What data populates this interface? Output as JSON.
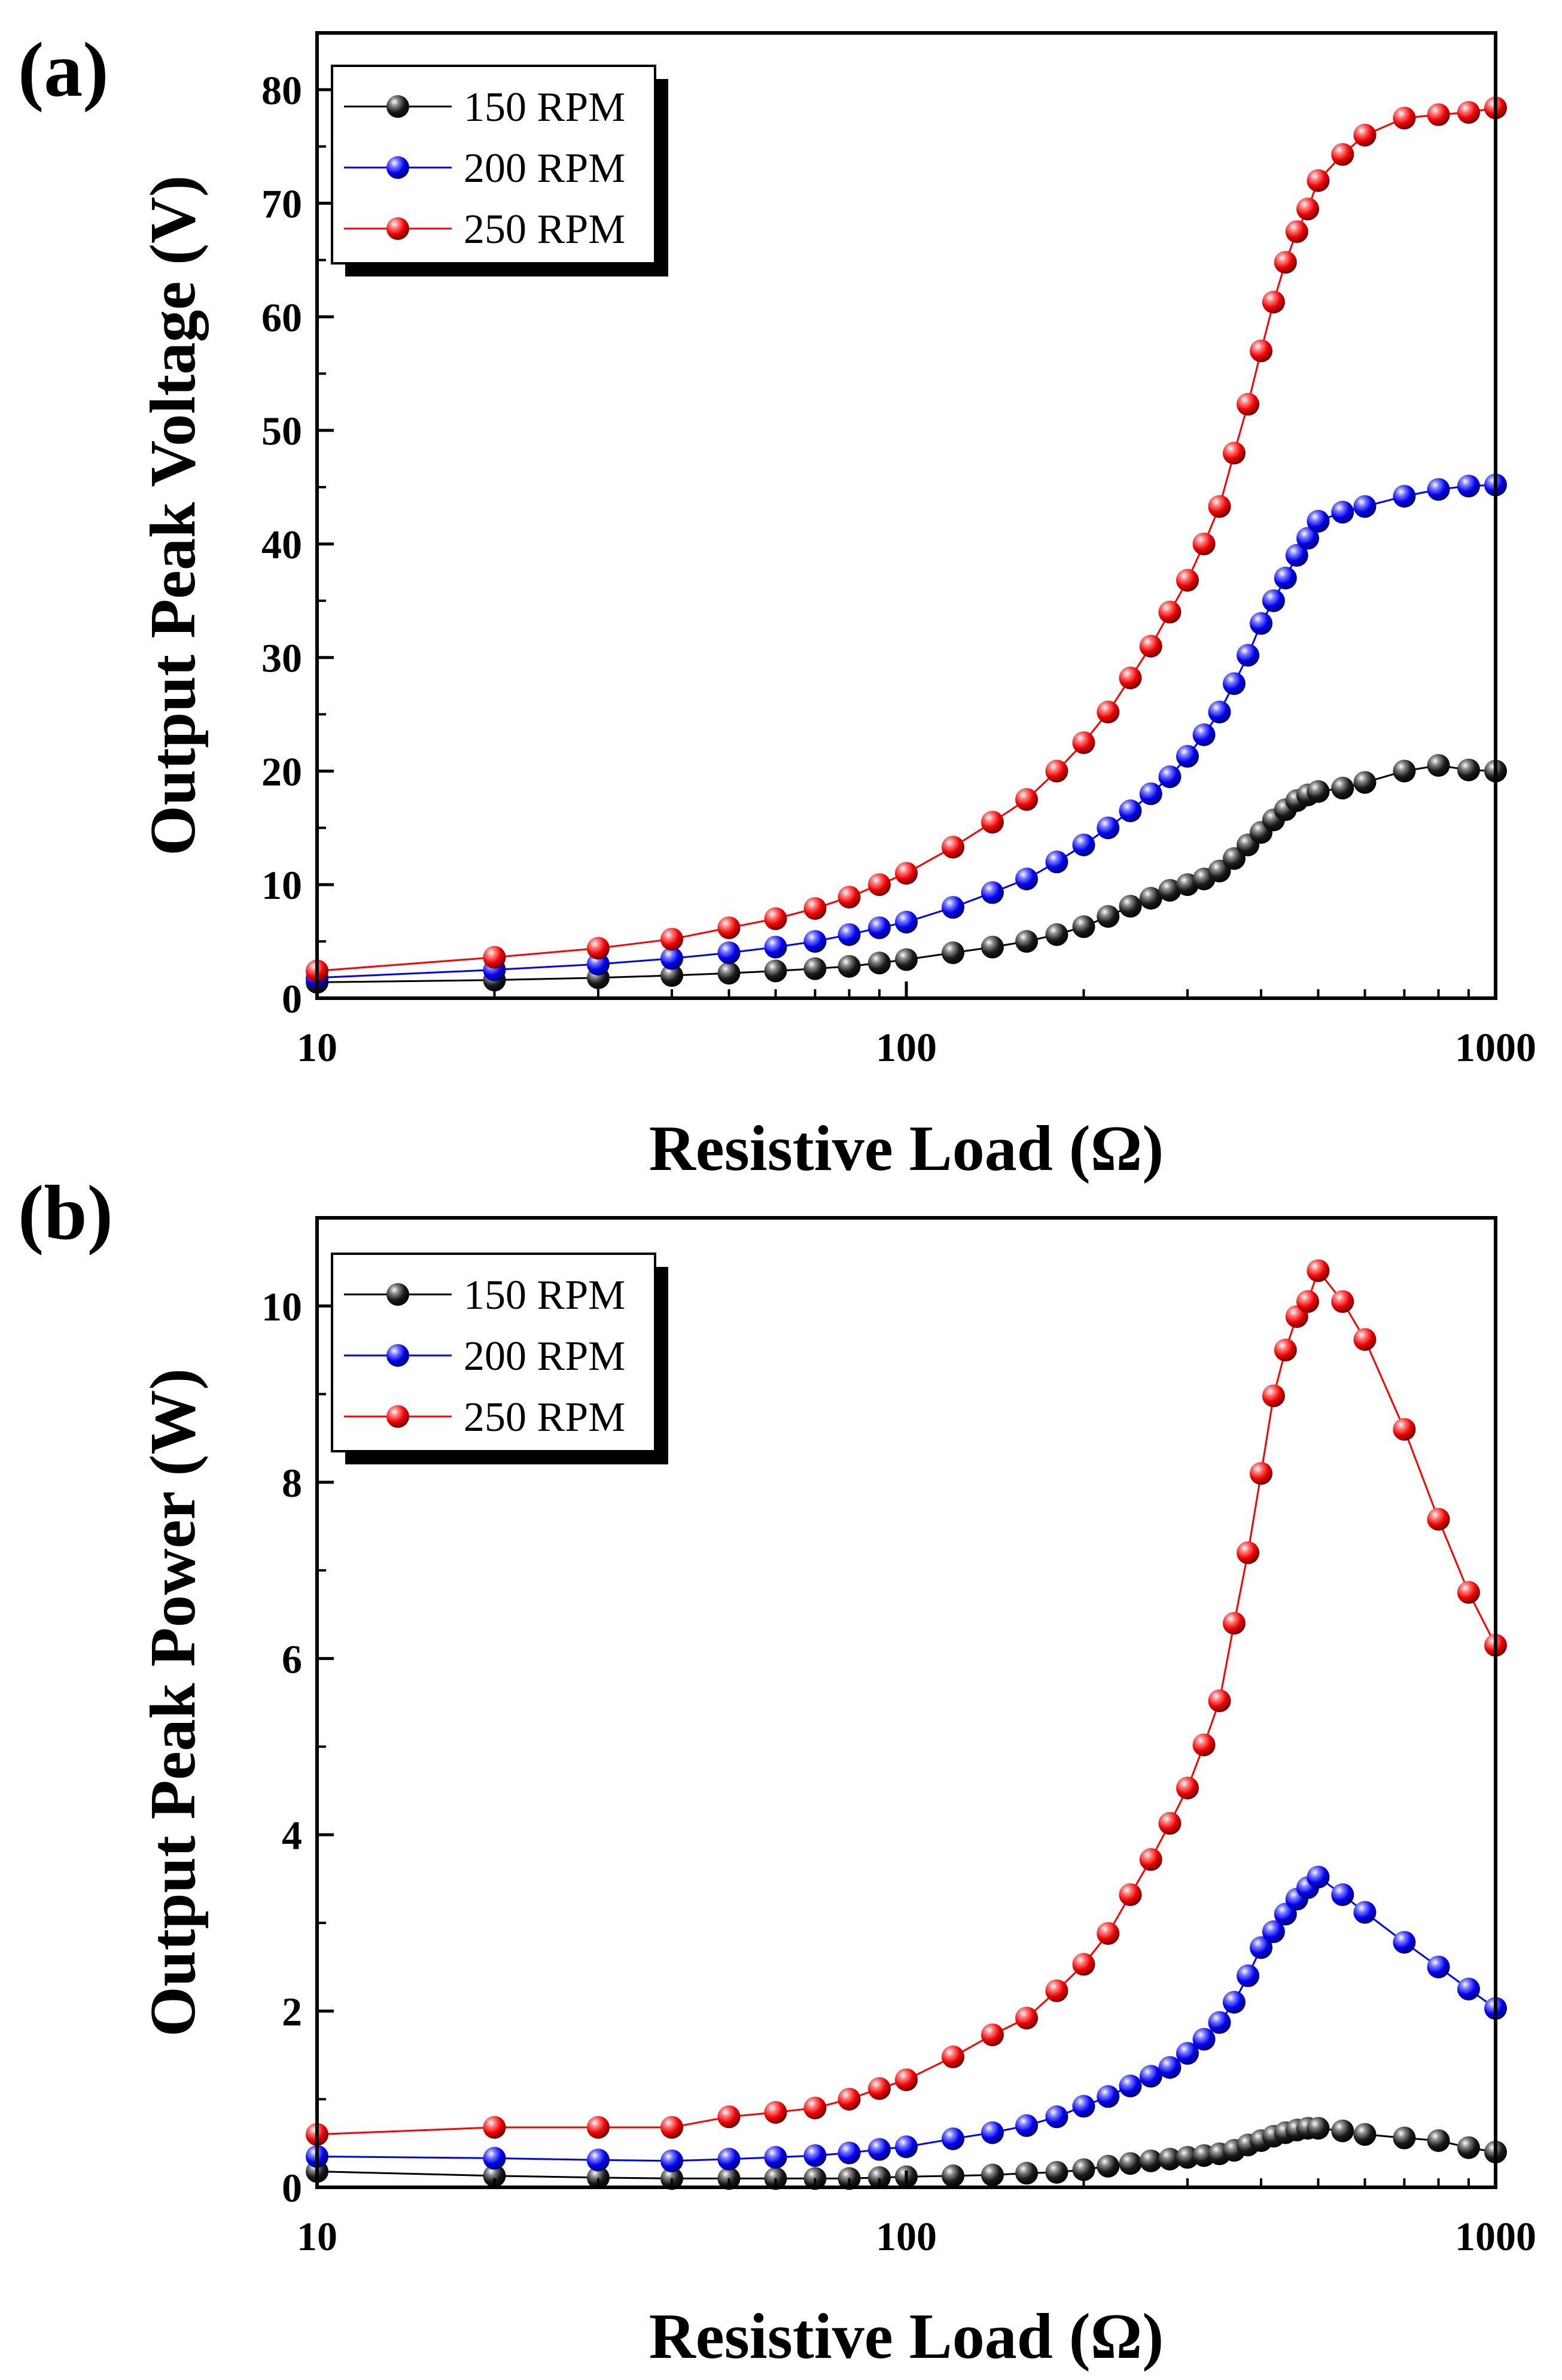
{
  "chart_data": [
    {
      "type": "line",
      "panel_label": "(a)",
      "title": "",
      "xlabel": "Resistive Load (Ω)",
      "ylabel": "Output Peak Voltage (V)",
      "xscale": "log",
      "xlim": [
        10,
        1000
      ],
      "ylim": [
        0,
        85
      ],
      "x_ticks": [
        10,
        100,
        1000
      ],
      "x_tick_labels": [
        "10",
        "100",
        "1000"
      ],
      "y_ticks": [
        0,
        10,
        20,
        30,
        40,
        50,
        60,
        70,
        80
      ],
      "y_tick_labels": [
        "0",
        "10",
        "20",
        "30",
        "40",
        "50",
        "60",
        "70",
        "80"
      ],
      "legend_position": "top-left",
      "x": [
        10,
        20,
        30,
        40,
        50,
        60,
        70,
        80,
        90,
        100,
        120,
        140,
        160,
        180,
        200,
        220,
        240,
        260,
        280,
        300,
        320,
        340,
        360,
        380,
        400,
        420,
        440,
        460,
        480,
        500,
        550,
        600,
        700,
        800,
        900,
        1000
      ],
      "series": [
        {
          "name": "150 RPM",
          "color": "#000000",
          "values": [
            1.4,
            1.6,
            1.8,
            2.0,
            2.2,
            2.4,
            2.6,
            2.8,
            3.1,
            3.4,
            4.0,
            4.5,
            5.0,
            5.6,
            6.3,
            7.2,
            8.1,
            8.8,
            9.5,
            10.0,
            10.5,
            11.2,
            12.3,
            13.5,
            14.6,
            15.7,
            16.6,
            17.4,
            17.9,
            18.2,
            18.5,
            19.0,
            20.0,
            20.5,
            20.1,
            20.0
          ]
        },
        {
          "name": "200 RPM",
          "color": "#0000ff",
          "values": [
            1.8,
            2.5,
            3.0,
            3.5,
            4.0,
            4.5,
            5.0,
            5.6,
            6.2,
            6.7,
            8.0,
            9.3,
            10.5,
            12.0,
            13.5,
            15.0,
            16.5,
            18.0,
            19.5,
            21.3,
            23.2,
            25.2,
            27.7,
            30.2,
            33.0,
            35.0,
            37.0,
            39.0,
            40.5,
            42.0,
            42.8,
            43.3,
            44.2,
            44.8,
            45.1,
            45.2
          ]
        },
        {
          "name": "250 RPM",
          "color": "#ff0000",
          "values": [
            2.4,
            3.6,
            4.4,
            5.2,
            6.2,
            7.0,
            7.9,
            8.9,
            10.0,
            11.0,
            13.3,
            15.5,
            17.5,
            20.0,
            22.5,
            25.2,
            28.2,
            31.0,
            34.0,
            36.8,
            40.0,
            43.3,
            48.0,
            52.3,
            57.0,
            61.3,
            64.8,
            67.5,
            69.5,
            72.0,
            74.3,
            76.0,
            77.5,
            77.8,
            78.0,
            78.4
          ]
        }
      ]
    },
    {
      "type": "line",
      "panel_label": "(b)",
      "title": "",
      "xlabel": "Resistive Load (Ω)",
      "ylabel": "Output Peak Power (W)",
      "xscale": "log",
      "xlim": [
        10,
        1000
      ],
      "ylim": [
        0,
        11
      ],
      "x_ticks": [
        10,
        100,
        1000
      ],
      "x_tick_labels": [
        "10",
        "100",
        "1000"
      ],
      "y_ticks": [
        0,
        2,
        4,
        6,
        8,
        10
      ],
      "y_tick_labels": [
        "0",
        "2",
        "4",
        "6",
        "8",
        "10"
      ],
      "legend_position": "top-left",
      "x": [
        10,
        20,
        30,
        40,
        50,
        60,
        70,
        80,
        90,
        100,
        120,
        140,
        160,
        180,
        200,
        220,
        240,
        260,
        280,
        300,
        320,
        340,
        360,
        380,
        400,
        420,
        440,
        460,
        480,
        500,
        550,
        600,
        700,
        800,
        900,
        1000
      ],
      "series": [
        {
          "name": "150 RPM",
          "color": "#000000",
          "values": [
            0.18,
            0.13,
            0.11,
            0.1,
            0.1,
            0.1,
            0.1,
            0.1,
            0.11,
            0.12,
            0.13,
            0.14,
            0.16,
            0.17,
            0.2,
            0.24,
            0.27,
            0.3,
            0.32,
            0.34,
            0.36,
            0.38,
            0.42,
            0.48,
            0.53,
            0.58,
            0.62,
            0.65,
            0.67,
            0.67,
            0.64,
            0.6,
            0.56,
            0.53,
            0.45,
            0.4
          ]
        },
        {
          "name": "200 RPM",
          "color": "#0000ff",
          "values": [
            0.35,
            0.33,
            0.31,
            0.3,
            0.32,
            0.34,
            0.36,
            0.39,
            0.43,
            0.46,
            0.55,
            0.62,
            0.7,
            0.8,
            0.92,
            1.03,
            1.15,
            1.26,
            1.36,
            1.52,
            1.68,
            1.87,
            2.1,
            2.4,
            2.72,
            2.9,
            3.1,
            3.27,
            3.4,
            3.52,
            3.32,
            3.12,
            2.78,
            2.5,
            2.25,
            2.03
          ]
        },
        {
          "name": "250 RPM",
          "color": "#ff0000",
          "values": [
            0.6,
            0.68,
            0.68,
            0.68,
            0.8,
            0.85,
            0.9,
            1.0,
            1.12,
            1.22,
            1.48,
            1.73,
            1.92,
            2.23,
            2.53,
            2.88,
            3.32,
            3.72,
            4.13,
            4.53,
            5.02,
            5.52,
            6.4,
            7.2,
            8.1,
            8.98,
            9.5,
            9.88,
            10.05,
            10.4,
            10.05,
            9.62,
            8.6,
            7.58,
            6.75,
            6.15
          ]
        }
      ]
    }
  ]
}
